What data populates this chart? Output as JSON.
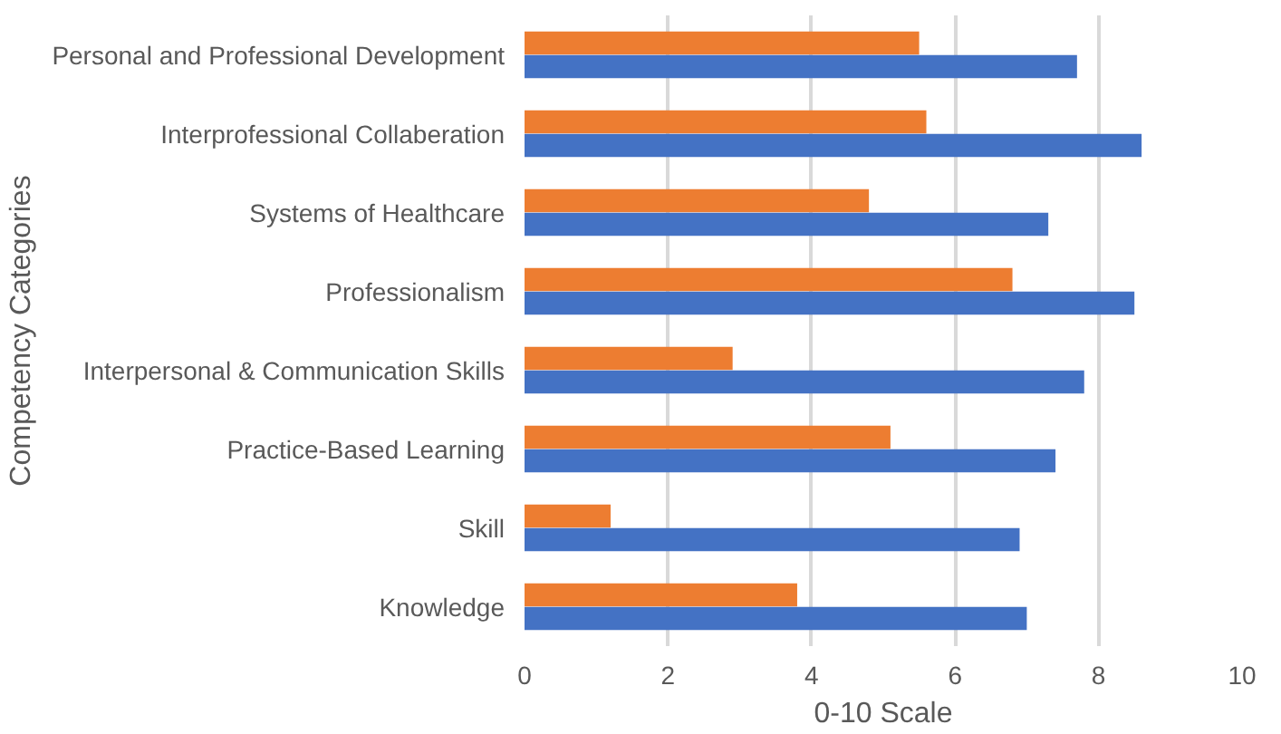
{
  "chart_data": {
    "type": "bar",
    "orientation": "horizontal",
    "ylabel": "Competency Categories",
    "xlabel": "0-10 Scale",
    "categories": [
      "Personal and Professional Development",
      "Interprofessional Collaberation",
      "Systems of Healthcare",
      "Professionalism",
      "Interpersonal & Communication Skills",
      "Practice-Based Learning",
      "Skill",
      "Knowledge"
    ],
    "series": [
      {
        "color": "#ed7d31",
        "values": [
          5.5,
          5.6,
          4.8,
          6.8,
          2.9,
          5.1,
          1.2,
          3.8
        ]
      },
      {
        "color": "#4472c4",
        "values": [
          7.7,
          8.6,
          7.3,
          8.5,
          7.8,
          7.4,
          6.9,
          7.0
        ]
      }
    ],
    "xlim": [
      0,
      10
    ],
    "xticks": [
      0,
      2,
      4,
      6,
      8,
      10
    ],
    "grid": "x"
  }
}
